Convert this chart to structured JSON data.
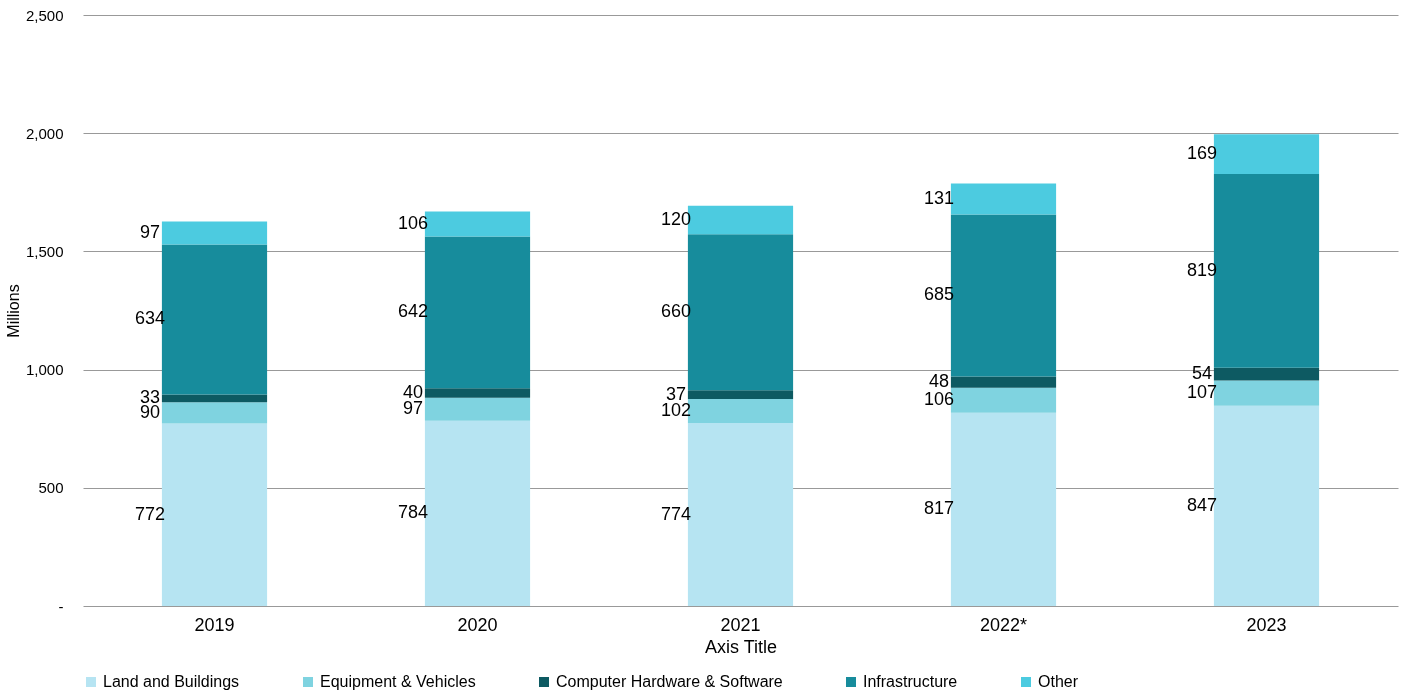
{
  "chart_data": {
    "type": "bar",
    "stacked": true,
    "xlabel": "Axis Title",
    "ylabel": "Millions",
    "categories": [
      "2019",
      "2020",
      "2021",
      "2022*",
      "2023"
    ],
    "series": [
      {
        "name": "Land and Buildings",
        "color": "#b6e4f2",
        "values": [
          772,
          784,
          774,
          817,
          847
        ]
      },
      {
        "name": "Equipment & Vehicles",
        "color": "#7fd3e0",
        "values": [
          90,
          97,
          102,
          106,
          107
        ]
      },
      {
        "name": "Computer Hardware & Software",
        "color": "#0d5a62",
        "values": [
          33,
          40,
          37,
          48,
          54
        ]
      },
      {
        "name": "Infrastructure",
        "color": "#178c9c",
        "values": [
          634,
          642,
          660,
          685,
          819
        ]
      },
      {
        "name": "Other",
        "color": "#4ccbe0",
        "values": [
          97,
          106,
          120,
          131,
          169
        ]
      }
    ],
    "ylim": [
      0,
      2500
    ],
    "yticks": [
      {
        "value": 0,
        "label": "-"
      },
      {
        "value": 500,
        "label": "500"
      },
      {
        "value": 1000,
        "label": "1,000"
      },
      {
        "value": 1500,
        "label": "1,500"
      },
      {
        "value": 2000,
        "label": "2,000"
      },
      {
        "value": 2500,
        "label": "2,500"
      }
    ],
    "grid": "y",
    "legend": "bottom",
    "data_labels": true
  }
}
